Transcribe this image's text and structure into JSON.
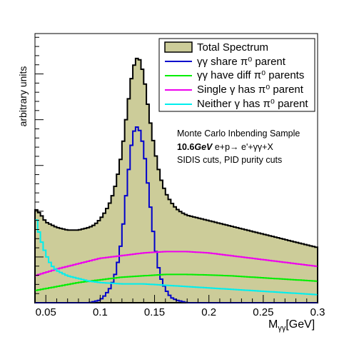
{
  "chart_data": {
    "type": "histogram",
    "title": "",
    "xlabel": "M",
    "xlabel_sub": "γγ",
    "xlabel_unit": "[GeV]",
    "ylabel": "arbitrary units",
    "xlim": [
      0.04,
      0.3
    ],
    "ylim": [
      0,
      100
    ],
    "x_ticks": [
      0.05,
      0.1,
      0.15,
      0.2,
      0.25,
      0.3
    ],
    "x_tick_labels": [
      "0.05",
      "0.1",
      "0.15",
      "0.2",
      "0.25",
      "0.3"
    ],
    "y_tick_labels_shown": false,
    "grid": false,
    "legend_position": "top-right",
    "legend": [
      {
        "label": "Total Spectrum",
        "color": "#cccc99",
        "style": "fill"
      },
      {
        "label": "γγ share π⁰ parent",
        "color": "#0000cc",
        "style": "line"
      },
      {
        "label": "γγ have diff π⁰ parents",
        "color": "#00ee00",
        "style": "line"
      },
      {
        "label": "Single γ has π⁰ parent",
        "color": "#ee00ee",
        "style": "line"
      },
      {
        "label": "Neither γ has π⁰ parent",
        "color": "#00eeee",
        "style": "line"
      }
    ],
    "annotations": [
      "Monte Carlo Inbending Sample",
      "10.6GeV e+p→ e'+γγ+X",
      "SIDIS cuts, PID purity cuts"
    ],
    "series": [
      {
        "key": "total",
        "color": "#cccc99",
        "points": [
          [
            0.04,
            35
          ],
          [
            0.045,
            33
          ],
          [
            0.05,
            30
          ],
          [
            0.055,
            29
          ],
          [
            0.06,
            28
          ],
          [
            0.065,
            27.5
          ],
          [
            0.07,
            27
          ],
          [
            0.075,
            27
          ],
          [
            0.08,
            27
          ],
          [
            0.085,
            27.5
          ],
          [
            0.09,
            28
          ],
          [
            0.095,
            29
          ],
          [
            0.1,
            31
          ],
          [
            0.105,
            34
          ],
          [
            0.11,
            38
          ],
          [
            0.115,
            45
          ],
          [
            0.12,
            56
          ],
          [
            0.125,
            72
          ],
          [
            0.13,
            87
          ],
          [
            0.135,
            92
          ],
          [
            0.14,
            85
          ],
          [
            0.145,
            70
          ],
          [
            0.15,
            57
          ],
          [
            0.155,
            47
          ],
          [
            0.16,
            41
          ],
          [
            0.165,
            37.5
          ],
          [
            0.17,
            35
          ],
          [
            0.175,
            33.5
          ],
          [
            0.18,
            32.5
          ],
          [
            0.185,
            32
          ],
          [
            0.19,
            31.5
          ],
          [
            0.2,
            30.5
          ],
          [
            0.21,
            29.5
          ],
          [
            0.22,
            28.5
          ],
          [
            0.23,
            27.5
          ],
          [
            0.24,
            26.5
          ],
          [
            0.25,
            25.5
          ],
          [
            0.26,
            24.5
          ],
          [
            0.27,
            23.5
          ],
          [
            0.28,
            22.5
          ],
          [
            0.29,
            21.5
          ],
          [
            0.3,
            20.5
          ]
        ]
      },
      {
        "key": "share",
        "color": "#0000cc",
        "points": [
          [
            0.04,
            0
          ],
          [
            0.09,
            0
          ],
          [
            0.095,
            0.5
          ],
          [
            0.1,
            1
          ],
          [
            0.105,
            3
          ],
          [
            0.11,
            6
          ],
          [
            0.115,
            12
          ],
          [
            0.12,
            24
          ],
          [
            0.125,
            45
          ],
          [
            0.13,
            63
          ],
          [
            0.135,
            66
          ],
          [
            0.14,
            58
          ],
          [
            0.145,
            40
          ],
          [
            0.15,
            22
          ],
          [
            0.155,
            10
          ],
          [
            0.16,
            5
          ],
          [
            0.165,
            2
          ],
          [
            0.17,
            1
          ],
          [
            0.175,
            0.5
          ],
          [
            0.18,
            0
          ],
          [
            0.3,
            0
          ]
        ]
      },
      {
        "key": "diff",
        "color": "#00ee00",
        "points": [
          [
            0.04,
            4.5
          ],
          [
            0.06,
            6
          ],
          [
            0.08,
            7.5
          ],
          [
            0.1,
            8.5
          ],
          [
            0.12,
            9.5
          ],
          [
            0.14,
            10
          ],
          [
            0.16,
            10.5
          ],
          [
            0.18,
            10.5
          ],
          [
            0.2,
            10.3
          ],
          [
            0.22,
            10
          ],
          [
            0.24,
            9.5
          ],
          [
            0.26,
            9
          ],
          [
            0.28,
            8.5
          ],
          [
            0.3,
            8
          ]
        ]
      },
      {
        "key": "single",
        "color": "#ee00ee",
        "points": [
          [
            0.04,
            10
          ],
          [
            0.06,
            12.5
          ],
          [
            0.08,
            14.5
          ],
          [
            0.1,
            16.5
          ],
          [
            0.12,
            17.5
          ],
          [
            0.14,
            18.5
          ],
          [
            0.16,
            19
          ],
          [
            0.18,
            19
          ],
          [
            0.2,
            18.5
          ],
          [
            0.22,
            17.5
          ],
          [
            0.24,
            16.5
          ],
          [
            0.26,
            15.5
          ],
          [
            0.28,
            14.5
          ],
          [
            0.3,
            13.5
          ]
        ]
      },
      {
        "key": "neither",
        "color": "#00eeee",
        "points": [
          [
            0.04,
            33
          ],
          [
            0.045,
            24
          ],
          [
            0.05,
            18
          ],
          [
            0.055,
            14
          ],
          [
            0.06,
            12
          ],
          [
            0.07,
            10
          ],
          [
            0.08,
            9
          ],
          [
            0.09,
            8
          ],
          [
            0.1,
            7.5
          ],
          [
            0.12,
            7
          ],
          [
            0.14,
            7
          ],
          [
            0.16,
            6.5
          ],
          [
            0.18,
            6
          ],
          [
            0.2,
            5.5
          ],
          [
            0.22,
            5
          ],
          [
            0.24,
            4.5
          ],
          [
            0.26,
            4
          ],
          [
            0.28,
            3.5
          ],
          [
            0.3,
            3
          ]
        ]
      }
    ]
  }
}
